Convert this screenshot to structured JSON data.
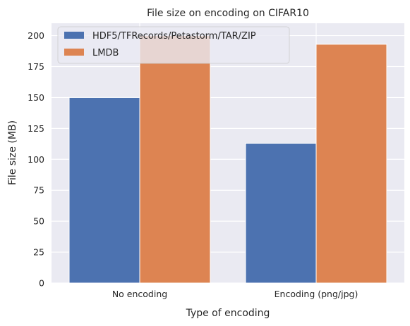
{
  "chart_data": {
    "type": "bar",
    "title": "File size on encoding on CIFAR10",
    "xlabel": "Type of encoding",
    "ylabel": "File size (MB)",
    "categories": [
      "No encoding",
      "Encoding (png/jpg)"
    ],
    "series": [
      {
        "name": "HDF5/TFRecords/Petastorm/TAR/ZIP",
        "values": [
          150,
          113
        ],
        "color": "#4c72b0"
      },
      {
        "name": "LMDB",
        "values": [
          200,
          193
        ],
        "color": "#dd8452"
      }
    ],
    "ylim": [
      0,
      210
    ],
    "yticks": [
      0,
      25,
      50,
      75,
      100,
      125,
      150,
      175,
      200
    ],
    "grid": true,
    "legend_position": "top-left",
    "background_color": "#eaeaf2"
  }
}
